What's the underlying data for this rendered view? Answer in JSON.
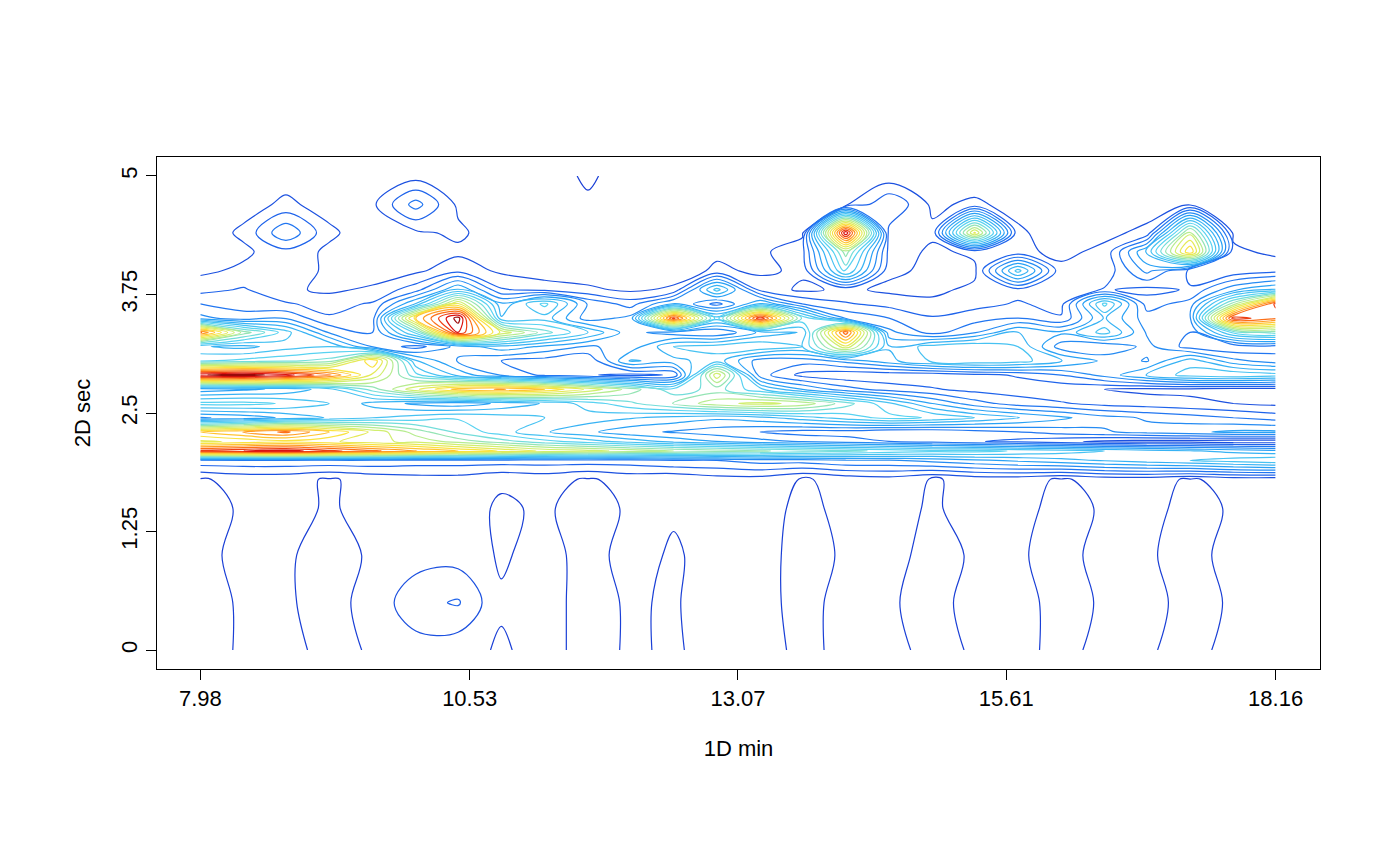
{
  "chart_data": {
    "type": "contour",
    "x_label": "1D min",
    "y_label": "2D sec",
    "xlim": [
      7.57,
      18.58
    ],
    "ylim": [
      -0.2,
      5.2
    ],
    "xticks": [
      7.98,
      10.53,
      13.07,
      15.61,
      18.16
    ],
    "yticks": [
      0,
      1.25,
      2.5,
      3.75,
      5
    ],
    "grid": false,
    "x": [
      7.98,
      8.39,
      8.79,
      9.2,
      9.61,
      10.02,
      10.42,
      10.83,
      11.24,
      11.65,
      12.05,
      12.46,
      12.87,
      13.28,
      13.68,
      14.09,
      14.5,
      14.91,
      15.31,
      15.72,
      16.13,
      16.54,
      16.94,
      17.35,
      17.76,
      18.16
    ],
    "y": [
      0,
      0.5,
      1,
      1.5,
      1.8,
      2.0,
      2.1,
      2.2,
      2.3,
      2.45,
      2.6,
      2.75,
      2.9,
      3.05,
      3.2,
      3.35,
      3.5,
      3.65,
      3.8,
      4.0,
      4.2,
      4.4,
      4.7,
      5.0
    ],
    "z": [
      [
        1,
        3,
        4,
        1,
        3,
        5,
        4,
        2,
        4,
        1,
        3,
        2,
        4,
        5,
        1,
        4,
        4,
        1,
        3,
        4,
        1,
        4,
        3,
        1,
        4,
        3
      ],
      [
        1,
        3,
        3,
        1,
        4,
        10,
        12,
        3,
        4,
        1,
        3,
        2,
        5,
        4,
        1,
        4,
        3,
        1,
        4,
        4,
        1,
        3,
        4,
        1,
        3,
        4
      ],
      [
        1,
        4,
        3,
        1,
        3,
        5,
        5,
        2,
        4,
        1,
        4,
        2,
        4,
        4,
        1,
        3,
        4,
        1,
        3,
        3,
        1,
        4,
        3,
        1,
        4,
        3
      ],
      [
        1,
        3,
        4,
        2,
        4,
        5,
        4,
        2,
        3,
        1,
        3,
        3,
        4,
        5,
        1,
        4,
        4,
        2,
        4,
        4,
        1,
        3,
        4,
        1,
        3,
        4
      ],
      [
        2,
        4,
        4,
        2,
        4,
        5,
        5,
        3,
        4,
        2,
        4,
        3,
        5,
        5,
        2,
        4,
        5,
        2,
        4,
        4,
        2,
        4,
        4,
        2,
        4,
        4
      ],
      [
        15,
        15,
        15,
        15,
        15,
        14,
        14,
        14,
        14,
        14,
        14,
        16,
        16,
        18,
        18,
        20,
        20,
        22,
        24,
        26,
        28,
        30,
        32,
        34,
        36,
        38
      ],
      [
        85,
        88,
        90,
        85,
        80,
        75,
        70,
        65,
        60,
        58,
        55,
        52,
        50,
        48,
        46,
        44,
        42,
        40,
        40,
        38,
        36,
        34,
        32,
        30,
        28,
        26
      ],
      [
        60,
        62,
        64,
        62,
        58,
        55,
        50,
        45,
        40,
        36,
        32,
        28,
        25,
        22,
        20,
        18,
        16,
        14,
        12,
        10,
        8,
        6,
        5,
        5,
        4,
        4
      ],
      [
        70,
        75,
        80,
        70,
        60,
        50,
        42,
        36,
        30,
        26,
        22,
        20,
        18,
        16,
        14,
        14,
        12,
        12,
        14,
        16,
        18,
        20,
        22,
        24,
        26,
        26
      ],
      [
        20,
        22,
        26,
        30,
        34,
        36,
        38,
        36,
        34,
        32,
        30,
        28,
        26,
        28,
        32,
        36,
        40,
        38,
        34,
        30,
        26,
        22,
        20,
        18,
        16,
        14
      ],
      [
        40,
        40,
        38,
        34,
        28,
        24,
        22,
        26,
        30,
        36,
        42,
        48,
        55,
        58,
        55,
        45,
        35,
        25,
        18,
        14,
        12,
        10,
        9,
        8,
        7,
        6
      ],
      [
        22,
        24,
        26,
        32,
        45,
        60,
        72,
        75,
        70,
        60,
        50,
        40,
        45,
        35,
        25,
        18,
        14,
        12,
        10,
        9,
        8,
        7,
        6,
        6,
        5,
        5
      ],
      [
        92,
        95,
        90,
        80,
        60,
        40,
        28,
        20,
        15,
        12,
        10,
        12,
        60,
        18,
        10,
        8,
        8,
        8,
        10,
        12,
        16,
        22,
        30,
        36,
        38,
        36
      ],
      [
        38,
        40,
        42,
        45,
        70,
        30,
        20,
        16,
        14,
        12,
        30,
        28,
        32,
        18,
        18,
        22,
        28,
        35,
        38,
        36,
        30,
        24,
        20,
        32,
        22,
        18
      ],
      [
        30,
        28,
        32,
        34,
        20,
        14,
        22,
        28,
        24,
        20,
        22,
        34,
        36,
        38,
        34,
        60,
        30,
        36,
        38,
        34,
        18,
        16,
        22,
        14,
        12,
        14
      ],
      [
        80,
        50,
        36,
        20,
        16,
        40,
        88,
        60,
        45,
        34,
        22,
        18,
        16,
        26,
        30,
        82,
        22,
        14,
        20,
        30,
        26,
        36,
        20,
        16,
        40,
        45
      ],
      [
        22,
        18,
        20,
        12,
        14,
        70,
        95,
        30,
        32,
        18,
        22,
        85,
        36,
        88,
        42,
        20,
        16,
        12,
        14,
        16,
        12,
        30,
        18,
        20,
        86,
        80
      ],
      [
        16,
        14,
        12,
        10,
        12,
        30,
        62,
        26,
        40,
        20,
        14,
        26,
        14,
        30,
        16,
        12,
        10,
        8,
        10,
        12,
        10,
        40,
        14,
        18,
        50,
        85
      ],
      [
        10,
        12,
        8,
        6,
        8,
        14,
        30,
        12,
        10,
        8,
        6,
        8,
        36,
        10,
        6,
        8,
        6,
        6,
        8,
        10,
        8,
        12,
        10,
        12,
        24,
        30
      ],
      [
        6,
        8,
        10,
        6,
        4,
        6,
        10,
        6,
        4,
        4,
        6,
        4,
        8,
        6,
        8,
        40,
        8,
        6,
        6,
        36,
        8,
        8,
        22,
        10,
        8,
        10
      ],
      [
        4,
        6,
        10,
        6,
        4,
        5,
        6,
        4,
        4,
        3,
        5,
        4,
        6,
        6,
        10,
        50,
        10,
        6,
        8,
        8,
        6,
        8,
        30,
        70,
        8,
        6
      ],
      [
        4,
        8,
        20,
        8,
        4,
        6,
        8,
        4,
        5,
        3,
        4,
        4,
        4,
        5,
        6,
        92,
        10,
        8,
        62,
        8,
        4,
        6,
        8,
        55,
        6,
        5
      ],
      [
        4,
        5,
        8,
        5,
        6,
        18,
        6,
        4,
        4,
        3,
        4,
        3,
        4,
        5,
        5,
        6,
        16,
        6,
        8,
        5,
        4,
        4,
        5,
        6,
        5,
        6
      ],
      [
        3,
        4,
        5,
        3,
        4,
        5,
        4,
        3,
        4,
        2,
        4,
        3,
        4,
        4,
        3,
        5,
        4,
        3,
        4,
        4,
        3,
        4,
        4,
        3,
        4,
        4
      ]
    ]
  }
}
